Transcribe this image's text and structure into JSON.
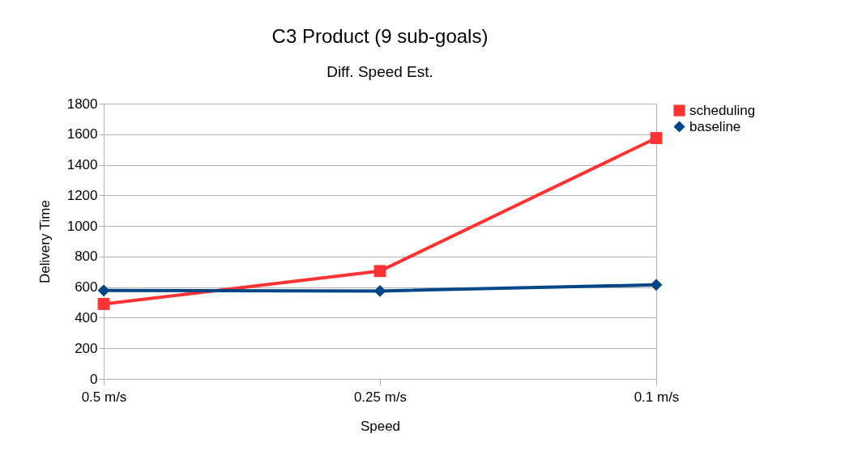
{
  "chart_data": {
    "type": "line",
    "title": "C3 Product (9 sub-goals)",
    "subtitle": "Diff. Speed Est.",
    "xlabel": "Speed",
    "ylabel": "Delivery Time",
    "categories": [
      "0.5 m/s",
      "0.25 m/s",
      "0.1 m/s"
    ],
    "series": [
      {
        "name": "scheduling",
        "color": "#ff3333",
        "marker": "square",
        "values": [
          490,
          705,
          1575
        ]
      },
      {
        "name": "baseline",
        "color": "#004586",
        "marker": "diamond",
        "values": [
          578,
          575,
          615
        ]
      }
    ],
    "ylim": [
      0,
      1800
    ],
    "yticks": [
      0,
      200,
      400,
      600,
      800,
      1000,
      1200,
      1400,
      1600,
      1800
    ],
    "grid": "y",
    "legend": "right"
  }
}
